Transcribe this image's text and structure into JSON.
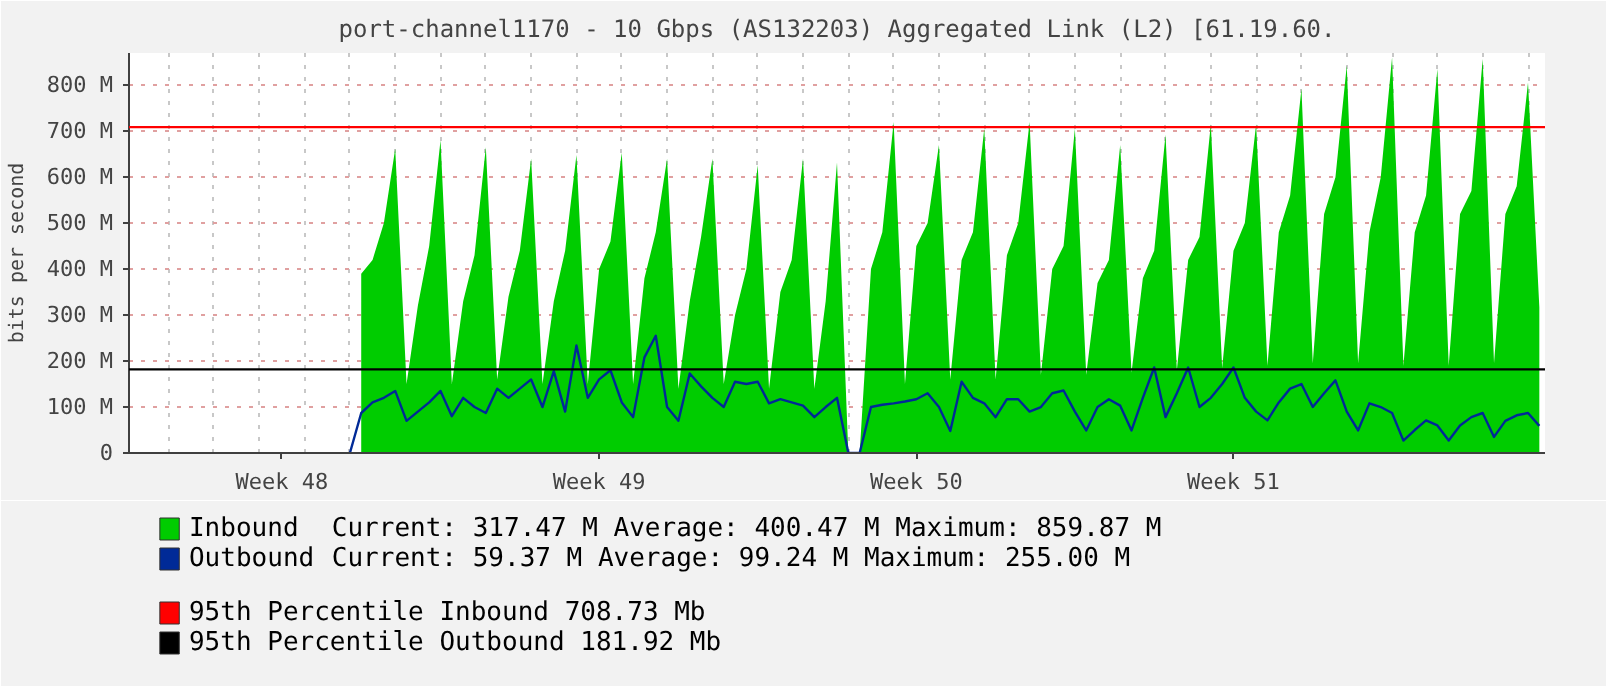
{
  "chart_data": {
    "type": "area",
    "title": "port-channel1170 - 10 Gbps (AS132203) Aggregated Link (L2) [61.19.60.",
    "ylabel": "bits per second",
    "ylim": [
      0,
      870
    ],
    "yticks": [
      0,
      {
        "value": 100,
        "label": "100 M"
      },
      {
        "value": 200,
        "label": "200 M"
      },
      {
        "value": 300,
        "label": "300 M"
      },
      {
        "value": 400,
        "label": "400 M"
      },
      {
        "value": 500,
        "label": "500 M"
      },
      {
        "value": 600,
        "label": "600 M"
      },
      {
        "value": 700,
        "label": "700 M"
      },
      {
        "value": 800,
        "label": "800 M"
      }
    ],
    "categories": [
      null,
      null,
      null,
      null,
      null,
      null,
      null,
      null,
      null,
      null,
      null,
      null,
      null,
      "Week 48",
      null,
      null,
      null,
      null,
      null,
      null,
      null,
      null,
      null,
      null,
      null,
      null,
      null,
      null,
      null,
      null,
      null,
      null,
      null,
      null,
      null,
      null,
      null,
      null,
      null,
      null,
      null,
      "Week 49",
      null,
      null,
      null,
      null,
      null,
      null,
      null,
      null,
      null,
      null,
      null,
      null,
      null,
      null,
      null,
      null,
      null,
      null,
      null,
      null,
      null,
      null,
      null,
      null,
      null,
      null,
      null,
      "Week 50",
      null,
      null,
      null,
      null,
      null,
      null,
      null,
      null,
      null,
      null,
      null,
      null,
      null,
      null,
      null,
      null,
      null,
      null,
      null,
      null,
      null,
      null,
      null,
      null,
      null,
      null,
      null,
      "Week 51",
      null,
      null,
      null,
      null,
      null,
      null,
      null,
      null,
      null,
      null,
      null,
      null,
      null,
      null,
      null,
      null,
      null,
      null,
      null,
      null,
      null,
      null,
      null,
      null,
      null,
      null,
      null
    ],
    "grid": true,
    "legend": "bottom",
    "series": [
      {
        "name": "Inbound",
        "color": "#00cc00",
        "values": [
          null,
          null,
          null,
          null,
          null,
          null,
          null,
          null,
          null,
          null,
          null,
          null,
          null,
          null,
          null,
          null,
          null,
          null,
          null,
          null,
          390,
          420,
          500,
          662,
          150,
          320,
          450,
          680,
          150,
          330,
          430,
          665,
          160,
          340,
          440,
          640,
          150,
          330,
          440,
          648,
          150,
          400,
          460,
          653,
          150,
          380,
          480,
          640,
          140,
          330,
          470,
          640,
          150,
          300,
          400,
          626,
          140,
          350,
          420,
          640,
          140,
          330,
          632,
          0,
          0,
          400,
          480,
          720,
          150,
          450,
          500,
          670,
          160,
          420,
          480,
          705,
          160,
          430,
          500,
          720,
          170,
          400,
          450,
          705,
          170,
          370,
          420,
          670,
          175,
          380,
          440,
          692,
          180,
          420,
          470,
          715,
          185,
          440,
          500,
          715,
          190,
          480,
          560,
          792,
          195,
          520,
          600,
          843,
          195,
          480,
          600,
          860,
          190,
          480,
          560,
          835,
          190,
          520,
          570,
          857,
          195,
          520,
          580,
          806,
          317
        ]
      },
      {
        "name": "Outbound",
        "type": "line",
        "color": "#002a97",
        "values": [
          null,
          null,
          null,
          null,
          null,
          null,
          null,
          null,
          null,
          null,
          null,
          null,
          null,
          null,
          null,
          null,
          null,
          null,
          null,
          0,
          87,
          110,
          120,
          135,
          70,
          90,
          110,
          135,
          80,
          120,
          100,
          87,
          140,
          120,
          140,
          160,
          100,
          178,
          90,
          234,
          120,
          160,
          180,
          110,
          78,
          208,
          255,
          100,
          70,
          173,
          145,
          120,
          100,
          155,
          150,
          155,
          108,
          117,
          110,
          103,
          78,
          100,
          120,
          0,
          0,
          100,
          105,
          108,
          112,
          117,
          130,
          100,
          48,
          155,
          120,
          108,
          78,
          117,
          117,
          90,
          100,
          130,
          136,
          90,
          49,
          100,
          117,
          103,
          49,
          120,
          186,
          78,
          130,
          186,
          100,
          120,
          150,
          186,
          120,
          90,
          71,
          110,
          140,
          150,
          100,
          130,
          158,
          90,
          49,
          108,
          100,
          87,
          27,
          50,
          71,
          60,
          27,
          60,
          78,
          87,
          35,
          70,
          82,
          87,
          59
        ]
      }
    ],
    "ref_lines": [
      {
        "axis": "y",
        "value": 708.73,
        "label": "95th Percentile Inbound  708.73 Mb",
        "color": "#ff0000"
      },
      {
        "axis": "y",
        "value": 181.92,
        "label": "95th Percentile Outbound  181.92 Mb",
        "color": "#000000"
      }
    ],
    "annotations": [
      "Current:  317.47 M  Average:  400.47 M  Maximum:  859.87 M",
      "Current:   59.37 M  Average:   99.24 M  Maximum:  255.00 M"
    ]
  }
}
